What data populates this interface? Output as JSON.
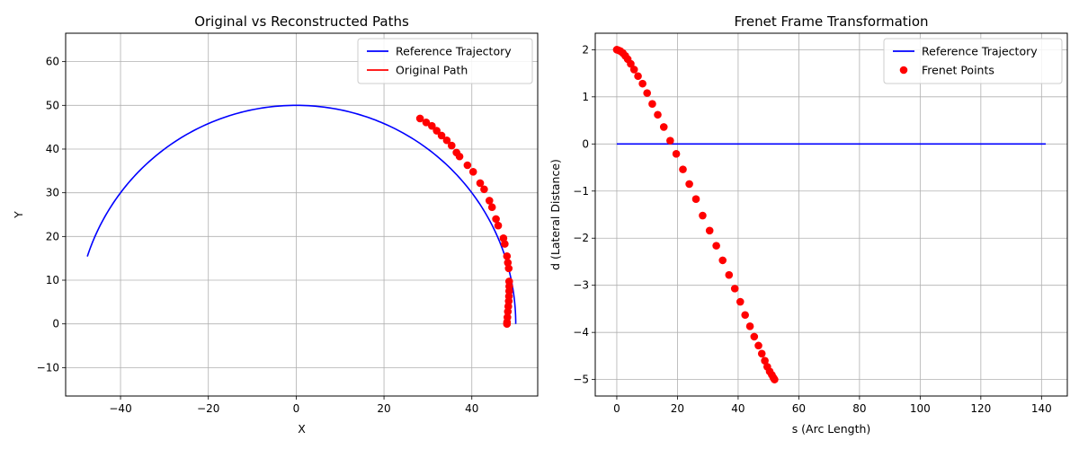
{
  "chart_data": [
    {
      "type": "line",
      "title": "Original vs Reconstructed Paths",
      "xlabel": "X",
      "ylabel": "Y",
      "xlim": [
        -52.5,
        55.0
      ],
      "ylim": [
        -16.5,
        66.5
      ],
      "xticks": [
        -40,
        -20,
        0,
        20,
        40
      ],
      "yticks": [
        -10,
        0,
        10,
        20,
        30,
        40,
        50,
        60
      ],
      "grid": true,
      "legend_position": "top-right",
      "series": [
        {
          "name": "Reference Trajectory",
          "color": "#0000ff",
          "kind": "line",
          "shape": "circular arc, center (0,0), radius 50, from angle 0 to ~2.83 rad",
          "x": [
            50,
            49.72,
            48.89,
            47.5,
            45.58,
            43.14,
            40.21,
            36.82,
            33.0,
            28.79,
            24.24,
            19.4,
            14.31,
            9.03,
            3.62,
            -1.87,
            -7.31,
            -12.63,
            -17.76,
            -22.63,
            -27.18,
            -31.34,
            -35.07,
            -38.31,
            -41.03,
            -43.2,
            -44.79,
            -45.78,
            -47.5
          ],
          "y": [
            0,
            5.3,
            10.5,
            15.6,
            20.5,
            25.2,
            29.7,
            33.8,
            37.6,
            40.9,
            43.7,
            46.1,
            47.9,
            49.2,
            49.9,
            50.0,
            49.5,
            48.4,
            46.7,
            44.6,
            42.0,
            39.0,
            35.6,
            32.1,
            28.6,
            25.2,
            22.2,
            20.1,
            15.4
          ]
        },
        {
          "name": "Original Path",
          "color": "#ff0000",
          "kind": "scatter",
          "x": [
            48.0,
            48.02,
            48.1,
            48.2,
            48.3,
            48.4,
            48.45,
            48.5,
            48.52,
            48.5,
            48.4,
            48.2,
            48.0,
            47.5,
            47.2,
            46.0,
            45.5,
            44.6,
            44.0,
            42.8,
            41.9,
            40.3,
            39.0,
            37.2,
            36.5,
            35.4,
            34.3,
            33.1,
            32.0,
            30.9,
            29.6,
            28.2
          ],
          "y": [
            0.0,
            0.4,
            1.5,
            2.8,
            4.0,
            5.2,
            6.3,
            7.5,
            8.6,
            9.7,
            12.7,
            14.0,
            15.5,
            18.3,
            19.6,
            22.5,
            24.0,
            26.7,
            28.2,
            30.8,
            32.2,
            34.8,
            36.3,
            38.3,
            39.2,
            40.8,
            42.0,
            43.1,
            44.2,
            45.3,
            46.1,
            47.0
          ]
        }
      ]
    },
    {
      "type": "line",
      "title": "Frenet Frame Transformation",
      "xlabel": "s (Arc Length)",
      "ylabel": "d (Lateral Distance)",
      "xlim": [
        -7.1,
        148.5
      ],
      "ylim": [
        -5.35,
        2.35
      ],
      "xticks": [
        0,
        20,
        40,
        60,
        80,
        100,
        120,
        140
      ],
      "yticks": [
        -5,
        -4,
        -3,
        -2,
        -1,
        0,
        1,
        2
      ],
      "grid": true,
      "legend_position": "top-right",
      "series": [
        {
          "name": "Reference Trajectory",
          "color": "#0000ff",
          "kind": "line",
          "x": [
            0,
            141.4
          ],
          "y": [
            0,
            0
          ]
        },
        {
          "name": "Frenet Points",
          "color": "#ff0000",
          "kind": "scatter",
          "x": [
            0.0,
            0.5,
            1.2,
            2.0,
            2.8,
            3.6,
            4.6,
            5.7,
            7.0,
            8.5,
            10.0,
            11.7,
            13.5,
            15.5,
            17.6,
            19.6,
            21.8,
            23.9,
            26.1,
            28.3,
            30.6,
            32.8,
            34.9,
            37.0,
            38.9,
            40.7,
            42.3,
            43.9,
            45.3,
            46.7,
            47.8,
            48.8,
            49.6,
            50.4,
            51.1,
            51.6,
            52.0
          ],
          "y": [
            2.0,
            1.99,
            1.97,
            1.93,
            1.87,
            1.8,
            1.7,
            1.58,
            1.44,
            1.28,
            1.08,
            0.85,
            0.62,
            0.36,
            0.07,
            -0.21,
            -0.54,
            -0.85,
            -1.17,
            -1.52,
            -1.84,
            -2.16,
            -2.47,
            -2.78,
            -3.07,
            -3.35,
            -3.63,
            -3.87,
            -4.09,
            -4.28,
            -4.45,
            -4.6,
            -4.73,
            -4.83,
            -4.9,
            -4.96,
            -5.0
          ]
        }
      ]
    }
  ]
}
